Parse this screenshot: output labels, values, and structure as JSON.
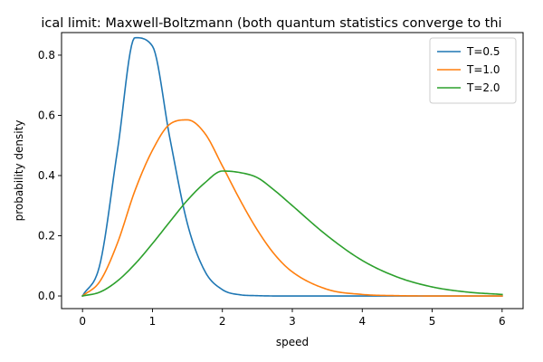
{
  "chart_data": {
    "type": "line",
    "title": "ical limit: Maxwell-Boltzmann (both quantum statistics converge to thi",
    "xlabel": "speed",
    "ylabel": "probability density",
    "xlim": [
      -0.3,
      6.3
    ],
    "ylim": [
      -0.042,
      0.875
    ],
    "xticks": [
      0,
      1,
      2,
      3,
      4,
      5,
      6
    ],
    "xtick_labels": [
      "0",
      "1",
      "2",
      "3",
      "4",
      "5",
      "6"
    ],
    "yticks": [
      0.0,
      0.2,
      0.4,
      0.6,
      0.8
    ],
    "ytick_labels": [
      "0.0",
      "0.2",
      "0.4",
      "0.6",
      "0.8"
    ],
    "grid": false,
    "legend_position": "top-right",
    "x_range": [
      0,
      6
    ],
    "series": [
      {
        "name": "T=0.5",
        "color": "#1f77b4",
        "x": [
          0,
          0.25,
          0.5,
          0.75,
          1.0,
          1.25,
          1.5,
          1.75,
          2.0,
          2.25,
          2.5,
          2.75,
          3.0,
          3.5,
          4.0,
          5.0,
          6.0
        ],
        "y": [
          0.0,
          0.106,
          0.484,
          0.858,
          0.83,
          0.523,
          0.24,
          0.082,
          0.021,
          0.004,
          0.001,
          0.0,
          0.0,
          0.0,
          0.0,
          0.0,
          0.0
        ]
      },
      {
        "name": "T=1.0",
        "color": "#ff7f0e",
        "x": [
          0,
          0.25,
          0.5,
          0.75,
          1.0,
          1.25,
          1.5,
          1.75,
          2.0,
          2.25,
          2.5,
          2.75,
          3.0,
          3.5,
          4.0,
          4.5,
          5.0,
          6.0
        ],
        "y": [
          0.0,
          0.049,
          0.176,
          0.35,
          0.484,
          0.571,
          0.585,
          0.54,
          0.432,
          0.32,
          0.219,
          0.137,
          0.08,
          0.022,
          0.005,
          0.001,
          0.0,
          0.0
        ]
      },
      {
        "name": "T=2.0",
        "color": "#2ca02c",
        "x": [
          0,
          0.25,
          0.5,
          0.75,
          1.0,
          1.25,
          1.5,
          1.75,
          2.0,
          2.25,
          2.5,
          2.75,
          3.0,
          3.5,
          4.0,
          4.5,
          5.0,
          5.5,
          6.0
        ],
        "y": [
          0.0,
          0.013,
          0.05,
          0.106,
          0.174,
          0.247,
          0.318,
          0.376,
          0.415,
          0.41,
          0.393,
          0.35,
          0.3,
          0.2,
          0.118,
          0.063,
          0.03,
          0.013,
          0.005
        ]
      }
    ]
  }
}
